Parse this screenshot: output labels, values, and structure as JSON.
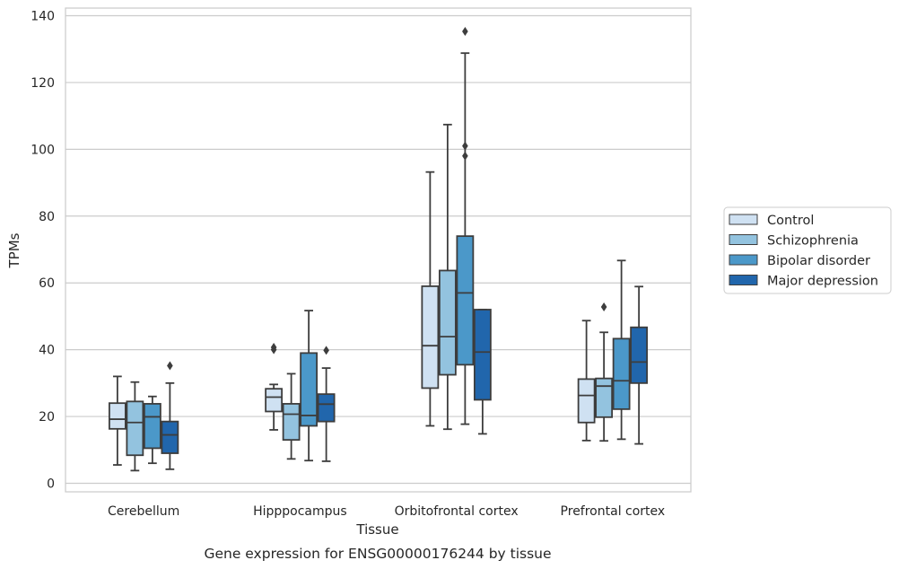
{
  "chart_data": {
    "type": "boxplot",
    "caption": "Gene expression for ENSG00000176244 by tissue",
    "xlabel": "Tissue",
    "ylabel": "TPMs",
    "ylim": [
      -2,
      142
    ],
    "yticks": [
      0,
      20,
      40,
      60,
      80,
      100,
      120,
      140
    ],
    "grid": true,
    "legend_position": "right",
    "categories": [
      "Cerebellum",
      "Hipppocampus",
      "Orbitofrontal cortex",
      "Prefrontal cortex"
    ],
    "series": [
      {
        "name": "Control",
        "color": "#cfe1f2",
        "boxes": [
          {
            "whislo": 5.5,
            "q1": 16.3,
            "med": 19.2,
            "q3": 24.0,
            "whishi": 32.0,
            "fliers": []
          },
          {
            "whislo": 16.0,
            "q1": 21.5,
            "med": 25.8,
            "q3": 28.3,
            "whishi": 29.6,
            "fliers": [
              40.0,
              40.7
            ]
          },
          {
            "whislo": 17.2,
            "q1": 28.5,
            "med": 41.2,
            "q3": 59.0,
            "whishi": 93.2,
            "fliers": []
          },
          {
            "whislo": 12.8,
            "q1": 18.2,
            "med": 26.3,
            "q3": 31.2,
            "whishi": 48.7,
            "fliers": []
          }
        ]
      },
      {
        "name": "Schizophrenia",
        "color": "#93c3df",
        "boxes": [
          {
            "whislo": 3.8,
            "q1": 8.4,
            "med": 18.2,
            "q3": 24.5,
            "whishi": 30.3,
            "fliers": []
          },
          {
            "whislo": 7.3,
            "q1": 13.0,
            "med": 20.7,
            "q3": 23.8,
            "whishi": 32.8,
            "fliers": []
          },
          {
            "whislo": 16.2,
            "q1": 32.5,
            "med": 43.9,
            "q3": 63.7,
            "whishi": 107.4,
            "fliers": []
          },
          {
            "whislo": 12.7,
            "q1": 19.8,
            "med": 29.1,
            "q3": 31.4,
            "whishi": 45.2,
            "fliers": [
              52.8
            ]
          }
        ]
      },
      {
        "name": "Bipolar disorder",
        "color": "#4b98c9",
        "boxes": [
          {
            "whislo": 6.0,
            "q1": 10.5,
            "med": 19.9,
            "q3": 23.8,
            "whishi": 26.0,
            "fliers": []
          },
          {
            "whislo": 6.8,
            "q1": 17.2,
            "med": 20.3,
            "q3": 39.0,
            "whishi": 51.7,
            "fliers": []
          },
          {
            "whislo": 17.7,
            "q1": 35.5,
            "med": 57.0,
            "q3": 74.0,
            "whishi": 128.8,
            "fliers": [
              98.0,
              101.0,
              135.3
            ]
          },
          {
            "whislo": 13.2,
            "q1": 22.2,
            "med": 30.7,
            "q3": 43.3,
            "whishi": 66.7,
            "fliers": []
          }
        ]
      },
      {
        "name": "Major depression",
        "color": "#2166ac",
        "boxes": [
          {
            "whislo": 4.2,
            "q1": 9.0,
            "med": 14.5,
            "q3": 18.5,
            "whishi": 30.0,
            "fliers": [
              35.2
            ]
          },
          {
            "whislo": 6.6,
            "q1": 18.5,
            "med": 23.7,
            "q3": 26.7,
            "whishi": 34.5,
            "fliers": [
              39.8
            ]
          },
          {
            "whislo": 14.8,
            "q1": 25.0,
            "med": 39.3,
            "q3": 52.0,
            "whishi": 52.0,
            "fliers": []
          },
          {
            "whislo": 11.8,
            "q1": 30.0,
            "med": 36.3,
            "q3": 46.7,
            "whishi": 58.9,
            "fliers": []
          }
        ]
      }
    ]
  }
}
